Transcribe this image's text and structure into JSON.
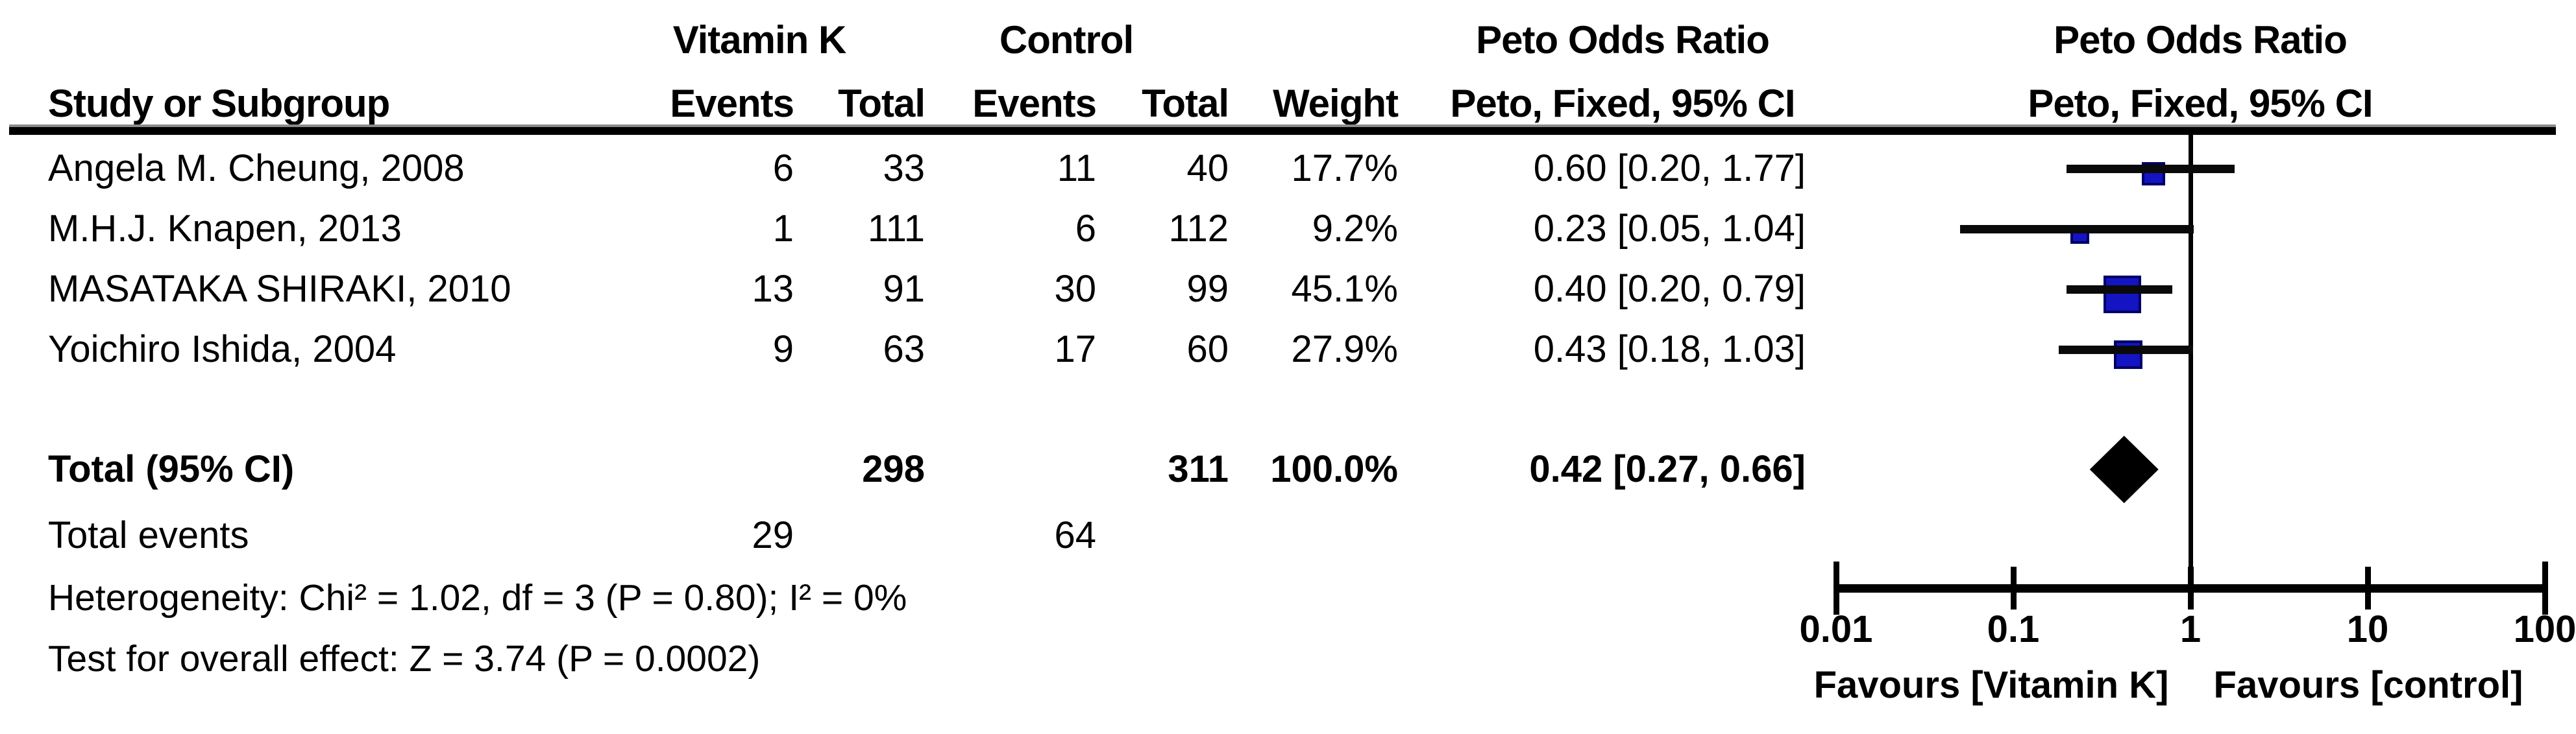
{
  "table": {
    "group1_header": "Vitamin K",
    "group2_header": "Control",
    "or_header": "Peto Odds Ratio",
    "or_subheader": "Peto, Fixed, 95% CI",
    "study_col_header": "Study or Subgroup",
    "events_header": "Events",
    "total_header": "Total",
    "weight_header": "Weight",
    "studies": [
      {
        "name": "Angela M. Cheung, 2008",
        "e1": "6",
        "t1": "33",
        "e2": "11",
        "t2": "40",
        "weight": "17.7%",
        "weight_val": 17.7,
        "ci_text": "0.60 [0.20, 1.77]",
        "or": 0.6,
        "lo": 0.2,
        "hi": 1.77
      },
      {
        "name": "M.H.J. Knapen, 2013",
        "e1": "1",
        "t1": "111",
        "e2": "6",
        "t2": "112",
        "weight": "9.2%",
        "weight_val": 9.2,
        "ci_text": "0.23 [0.05, 1.04]",
        "or": 0.23,
        "lo": 0.05,
        "hi": 1.04
      },
      {
        "name": "MASATAKA SHIRAKI, 2010",
        "e1": "13",
        "t1": "91",
        "e2": "30",
        "t2": "99",
        "weight": "45.1%",
        "weight_val": 45.1,
        "ci_text": "0.40 [0.20, 0.79]",
        "or": 0.4,
        "lo": 0.2,
        "hi": 0.79
      },
      {
        "name": "Yoichiro Ishida, 2004",
        "e1": "9",
        "t1": "63",
        "e2": "17",
        "t2": "60",
        "weight": "27.9%",
        "weight_val": 27.9,
        "ci_text": "0.43 [0.18, 1.03]",
        "or": 0.43,
        "lo": 0.18,
        "hi": 1.03
      }
    ],
    "total_row": {
      "label": "Total (95% CI)",
      "t1": "298",
      "t2": "311",
      "weight": "100.0%",
      "ci_text": "0.42 [0.27, 0.66]",
      "or": 0.42,
      "lo": 0.27,
      "hi": 0.66
    },
    "total_events": {
      "label": "Total events",
      "e1": "29",
      "e2": "64"
    },
    "heterogeneity": "Heterogeneity: Chi² = 1.02, df = 3 (P = 0.80); I² = 0%",
    "overall_effect": "Test for overall effect: Z = 3.74 (P = 0.0002)"
  },
  "plot": {
    "tick_values": [
      0.01,
      0.1,
      1,
      10,
      100
    ],
    "tick_labels": [
      "0.01",
      "0.1",
      "1",
      "10",
      "100"
    ],
    "favours_left": "Favours [Vitamin K]",
    "favours_right": "Favours [control]",
    "marker_color": "#1414c2",
    "marker_border": "#000066",
    "line_color": "#0a0a0a",
    "diamond_color": "#000000"
  },
  "chart_data": {
    "type": "scatter",
    "subtype": "forest-plot",
    "effect_measure": "Peto Odds Ratio, Peto, Fixed, 95% CI",
    "x_scale": "log",
    "xlim": [
      0.01,
      100
    ],
    "x_ticks": [
      0.01,
      0.1,
      1,
      10,
      100
    ],
    "xlabel_left": "Favours [Vitamin K]",
    "xlabel_right": "Favours [control]",
    "points": [
      {
        "label": "Angela M. Cheung, 2008",
        "or": 0.6,
        "ci_low": 0.2,
        "ci_high": 1.77,
        "weight_pct": 17.7,
        "marker": "square"
      },
      {
        "label": "M.H.J. Knapen, 2013",
        "or": 0.23,
        "ci_low": 0.05,
        "ci_high": 1.04,
        "weight_pct": 9.2,
        "marker": "square"
      },
      {
        "label": "MASATAKA SHIRAKI, 2010",
        "or": 0.4,
        "ci_low": 0.2,
        "ci_high": 0.79,
        "weight_pct": 45.1,
        "marker": "square"
      },
      {
        "label": "Yoichiro Ishida, 2004",
        "or": 0.43,
        "ci_low": 0.18,
        "ci_high": 1.03,
        "weight_pct": 27.9,
        "marker": "square"
      },
      {
        "label": "Total (95% CI)",
        "or": 0.42,
        "ci_low": 0.27,
        "ci_high": 0.66,
        "weight_pct": 100.0,
        "marker": "diamond"
      }
    ],
    "totals": {
      "vitamin_k_total": 298,
      "control_total": 311,
      "vitamin_k_events": 29,
      "control_events": 64
    },
    "heterogeneity": "Chi² = 1.02, df = 3 (P = 0.80); I² = 0%",
    "overall_effect": "Z = 3.74 (P = 0.0002)"
  }
}
